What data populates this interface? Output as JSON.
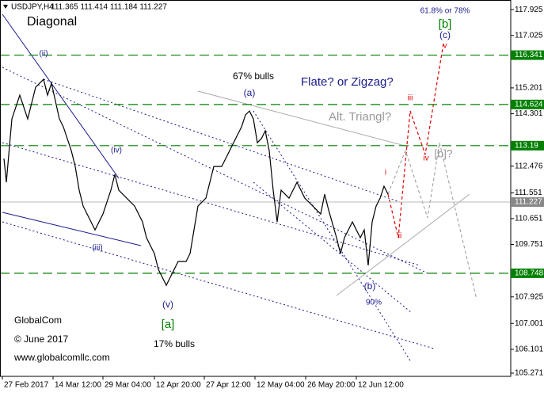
{
  "chart_data": {
    "type": "line",
    "title": "USDJPY,H4",
    "subtitle": "111.365 111.414 111.184 111.227",
    "x": [
      2,
      5,
      12,
      22,
      32,
      42,
      52,
      57,
      62,
      72,
      77,
      87,
      92,
      97,
      102,
      107,
      112,
      117,
      127,
      137,
      142,
      147,
      157,
      167,
      177,
      182,
      192,
      197,
      207,
      212,
      222,
      232,
      237,
      242,
      247,
      257,
      267,
      277,
      287,
      297,
      302,
      307,
      312,
      317,
      322,
      327,
      332,
      337,
      342,
      347,
      352,
      362,
      372,
      382,
      392,
      402,
      407,
      412,
      422,
      427,
      432,
      437,
      442,
      452,
      457,
      462,
      467,
      472,
      477,
      482,
      487
    ],
    "values": [
      112.742,
      111.915,
      114.12,
      114.947,
      114.12,
      115.223,
      115.499,
      114.947,
      115.361,
      114.12,
      113.845,
      113.018,
      112.466,
      111.639,
      111.088,
      110.812,
      110.536,
      110.26,
      110.812,
      111.639,
      112.19,
      111.639,
      111.363,
      111.088,
      110.536,
      109.985,
      109.433,
      108.882,
      108.33,
      108.606,
      109.158,
      109.158,
      109.433,
      110.26,
      111.088,
      111.363,
      112.466,
      112.466,
      113.018,
      113.569,
      113.845,
      114.258,
      114.396,
      114.12,
      113.293,
      113.431,
      113.707,
      113.018,
      111.639,
      110.536,
      111.639,
      111.363,
      111.915,
      111.363,
      111.088,
      110.812,
      111.501,
      110.95,
      109.985,
      109.433,
      109.985,
      110.26,
      110.536,
      109.985,
      110.26,
      109.02,
      110.536,
      111.088,
      111.363,
      111.777,
      111.501
    ],
    "color": "#000000",
    "xlim": [
      -3,
      642
    ],
    "ylim": [
      105.16,
      118.26
    ],
    "xticks": [
      {
        "value": 0,
        "label": "27 Feb 2017"
      },
      {
        "value": 64,
        "label": "14 Mar 12:00"
      },
      {
        "value": 127,
        "label": "29 Mar 04:00"
      },
      {
        "value": 192,
        "label": "12 Apr 20:00"
      },
      {
        "value": 255,
        "label": "27 Apr 12:00"
      },
      {
        "value": 319,
        "label": "12 May 04:00"
      },
      {
        "value": 383,
        "label": "26 May 20:00"
      },
      {
        "value": 447,
        "label": "12 Jun 12:00"
      }
    ],
    "yticks": [
      117.925,
      117.025,
      115.201,
      114.301,
      112.476,
      111.551,
      110.651,
      109.751,
      107.925,
      107.001,
      106.101,
      105.271
    ],
    "levels": [
      116.341,
      114.624,
      113.19,
      108.748
    ],
    "level_color": "#008000",
    "last_price": 111.227,
    "annotations": [
      "Diagonal",
      "61.8% or 78%",
      "[b]",
      "(c)",
      "v",
      "67% bulls",
      "(a)",
      "Flate? or Zigzag?",
      "iii",
      "Alt. Triangl?",
      "iv",
      "[b]?",
      "(ii)",
      "(iv)",
      "(iii)",
      "i",
      "ii",
      "(b)",
      "90%",
      "(v)",
      "[a]",
      "17% bulls",
      "GlobalCom",
      "© June 2017",
      "www.globalcomllc.com"
    ]
  }
}
